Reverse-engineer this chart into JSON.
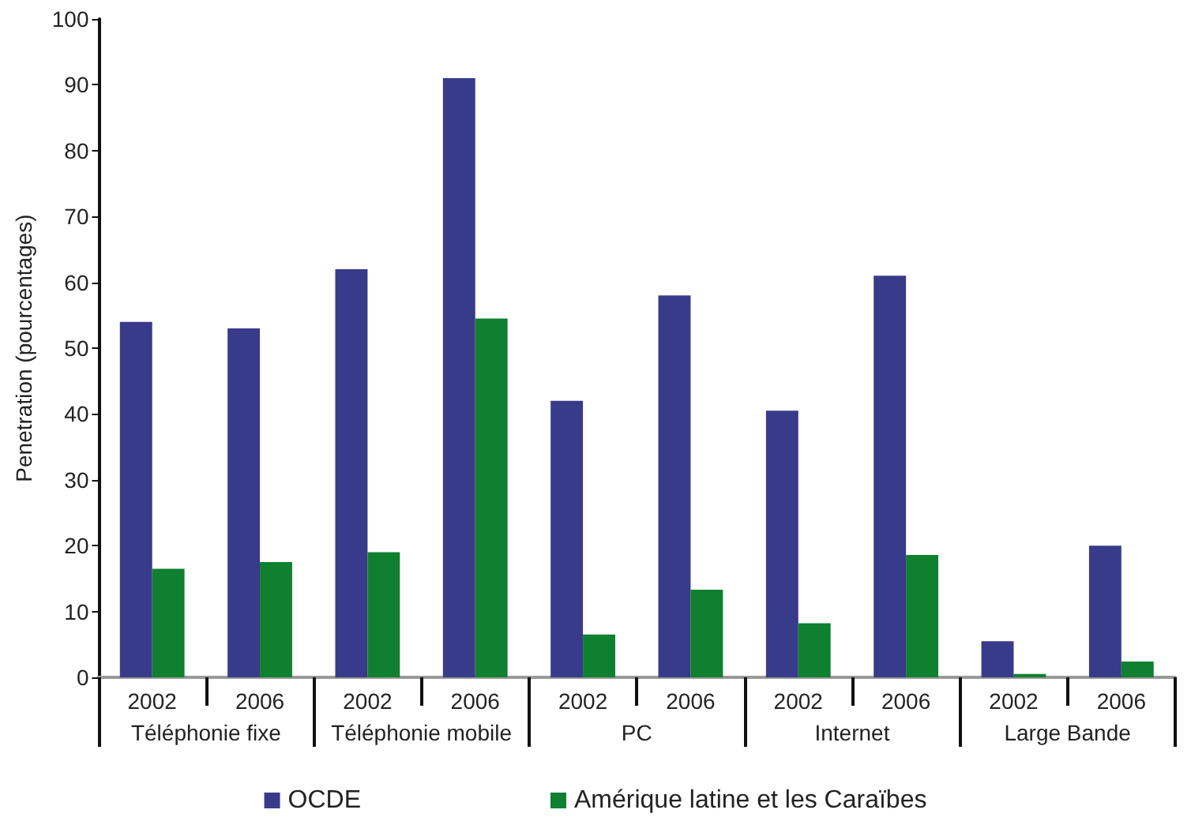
{
  "chart_data": {
    "type": "bar",
    "ylabel": "Penetration (pourcentages)",
    "categories": [
      "2002",
      "2006",
      "2002",
      "2006",
      "2002",
      "2006",
      "2002",
      "2006",
      "2002",
      "2006"
    ],
    "annotations": [
      "Téléphonie fixe",
      "Téléphonie mobile",
      "PC",
      "Internet",
      "Large Bande"
    ],
    "series": [
      {
        "name": "OCDE",
        "color": "#383a8a",
        "values": [
          54,
          53,
          62,
          91,
          42,
          58,
          40.5,
          61,
          5.5,
          20
        ]
      },
      {
        "name": "Amérique latine et les Caraïbes",
        "color": "#0e8030",
        "values": [
          16.5,
          17.5,
          19,
          54.5,
          6.5,
          13.3,
          8.2,
          18.6,
          0.5,
          2.4
        ]
      }
    ],
    "ylim": [
      0,
      100
    ],
    "yticks": [
      0,
      10,
      20,
      30,
      40,
      50,
      60,
      70,
      80,
      90,
      100
    ],
    "grid": false,
    "legend": "bottom"
  }
}
